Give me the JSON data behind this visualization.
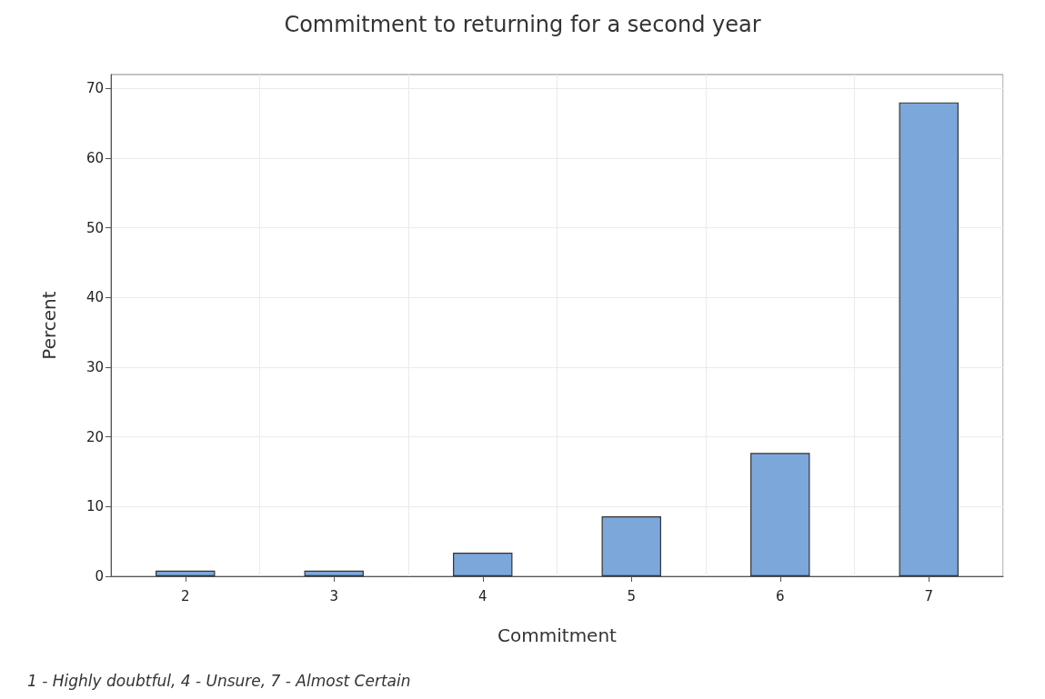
{
  "chart_data": {
    "type": "bar",
    "title": "Commitment to returning for a second year",
    "xlabel": "Commitment",
    "ylabel": "Percent",
    "categories": [
      "2",
      "3",
      "4",
      "5",
      "6",
      "7"
    ],
    "values": [
      0.8,
      0.8,
      3.4,
      8.6,
      17.7,
      68
    ],
    "color": "#7ba7db",
    "ylim": [
      0,
      72
    ],
    "yticks": [
      0,
      10,
      20,
      30,
      40,
      50,
      60,
      70
    ],
    "grid": true,
    "annotations": [
      "1 - Highly doubtful, 4 - Unsure, 7 - Almost Certain"
    ]
  }
}
